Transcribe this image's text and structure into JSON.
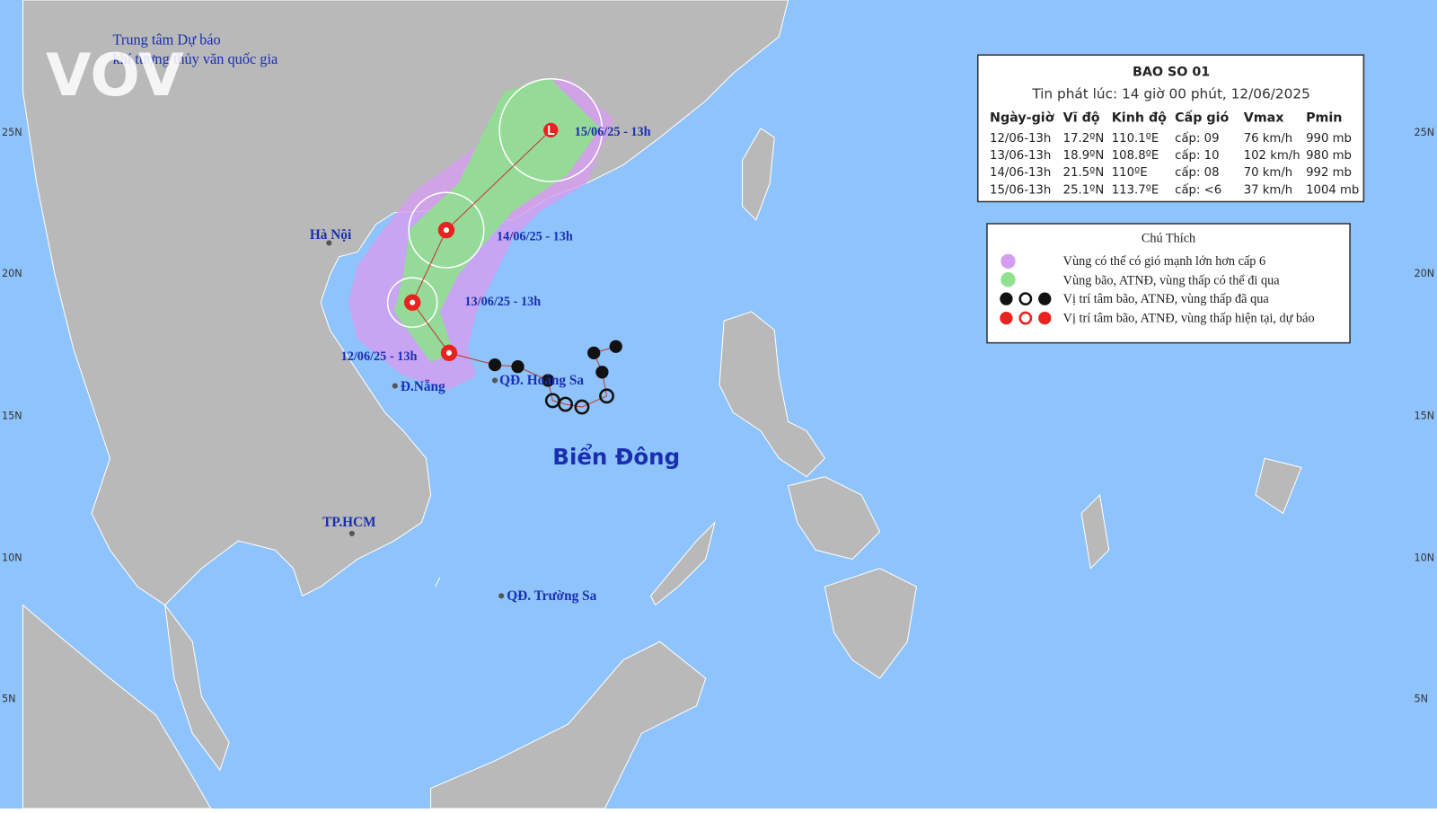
{
  "header": {
    "org_line1": "Trung tâm Dự báo",
    "org_line2": "khí tượng thủy văn quốc gia",
    "logo": "VOV"
  },
  "map": {
    "lat_labels": [
      "25N",
      "20N",
      "15N",
      "10N",
      "5N"
    ],
    "places": [
      "Hà Nội",
      "Đ.Nẵng",
      "TP.HCM",
      "QĐ. Hoàng Sa",
      "QĐ. Trường Sa"
    ],
    "sea": "Biển Đông",
    "forecast_labels": [
      "15/06/25 - 13h",
      "14/06/25 - 13h",
      "13/06/25 - 13h",
      "12/06/25 - 13h"
    ]
  },
  "info_box": {
    "title": "BAO SO 01",
    "issued": "Tin phát lúc: 14 giờ 00 phút, 12/06/2025",
    "columns": [
      "Ngày-giờ",
      "Vĩ độ",
      "Kinh độ",
      "Cấp gió",
      "Vmax",
      "Pmin"
    ],
    "rows": [
      [
        "12/06-13h",
        "17.2ºN",
        "110.1ºE",
        "cấp: 09",
        "76 km/h",
        "990 mb"
      ],
      [
        "13/06-13h",
        "18.9ºN",
        "108.8ºE",
        "cấp: 10",
        "102 km/h",
        "980 mb"
      ],
      [
        "14/06-13h",
        "21.5ºN",
        "110ºE",
        "cấp: 08",
        "70 km/h",
        "992 mb"
      ],
      [
        "15/06-13h",
        "25.1ºN",
        "113.7ºE",
        "cấp: <6",
        "37 km/h",
        "1004 mb"
      ]
    ]
  },
  "legend": {
    "title": "Chú Thích",
    "items": [
      "Vùng có thể có gió mạnh lớn hơn cấp 6",
      "Vùng bão, ATNĐ, vùng thấp có thể đi qua",
      "Vị trí tâm bão, ATNĐ, vùng thấp đã qua",
      "Vị trí tâm bão, ATNĐ, vùng thấp hiện tại, dự báo"
    ]
  }
}
